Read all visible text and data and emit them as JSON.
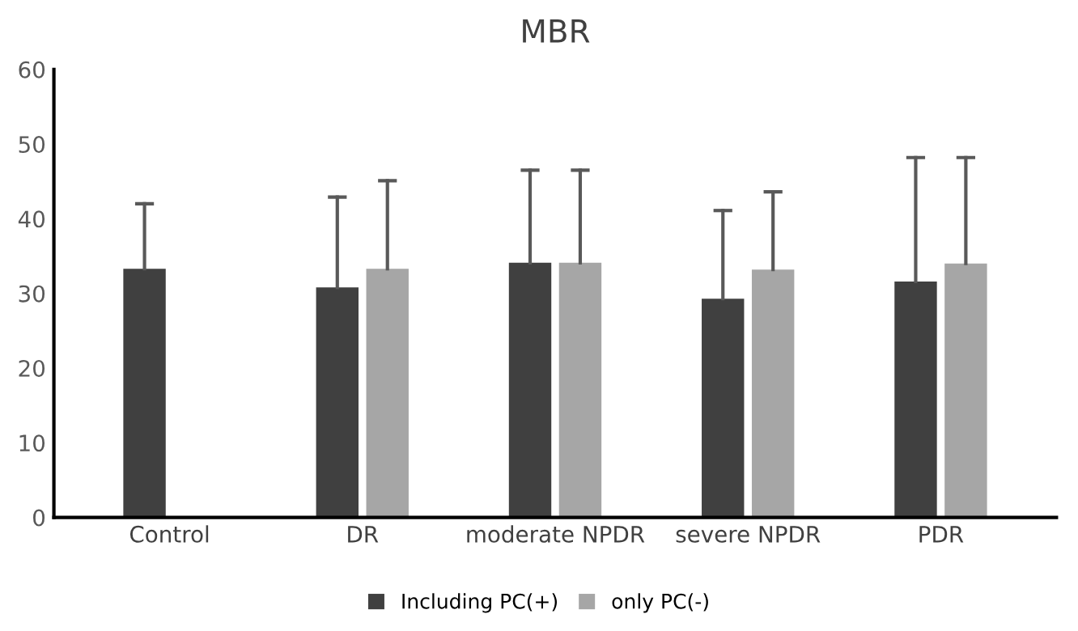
{
  "chart_data": {
    "type": "bar",
    "title": "MBR",
    "categories": [
      "Control",
      "DR",
      "moderate NPDR",
      "severe NPDR",
      "PDR"
    ],
    "series": [
      {
        "name": "Including PC(+)",
        "color": "#404040",
        "values": [
          33.3,
          30.8,
          34.1,
          29.3,
          31.6
        ],
        "errors": [
          [
            33.3,
            42.0
          ],
          [
            30.8,
            42.9
          ],
          [
            34.1,
            46.5
          ],
          [
            29.3,
            41.1
          ],
          [
            31.6,
            48.2
          ]
        ]
      },
      {
        "name": "only PC(-)",
        "color": "#a6a6a6",
        "values": [
          null,
          33.3,
          34.1,
          33.2,
          34.0
        ],
        "errors": [
          null,
          [
            33.3,
            45.1
          ],
          [
            34.1,
            46.5
          ],
          [
            33.2,
            43.6
          ],
          [
            34.0,
            48.2
          ]
        ]
      }
    ],
    "ylim": [
      0,
      60
    ],
    "yticks": [
      0,
      10,
      20,
      30,
      40,
      50,
      60
    ],
    "grid": false,
    "legend": "bottom"
  }
}
